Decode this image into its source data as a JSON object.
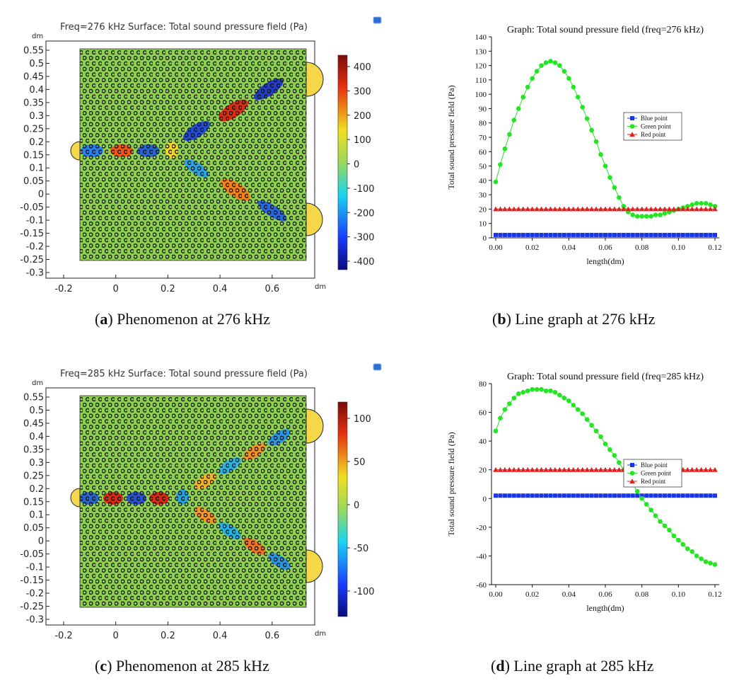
{
  "panels": [
    {
      "id": "a",
      "letter": "a",
      "caption": "Phenomenon at 276 kHz",
      "title": "Freq=276 kHz Surface: Total sound pressure field (Pa)",
      "unit_y": "dm",
      "unit_x": "dm",
      "yticks": [
        "0.55",
        "0.5",
        "0.45",
        "0.4",
        "0.35",
        "0.3",
        "0.25",
        "0.2",
        "0.15",
        "0.1",
        "0.05",
        "0",
        "-0.05",
        "-0.1",
        "-0.15",
        "-0.2",
        "-0.25",
        "-0.3"
      ],
      "xticks": [
        "-0.2",
        "0",
        "0.2",
        "0.4",
        "0.6"
      ],
      "colorbar_ticks": [
        "400",
        "300",
        "200",
        "100",
        "0",
        "-100",
        "-200",
        "-300",
        "-400"
      ]
    },
    {
      "id": "c",
      "letter": "c",
      "caption": "Phenomenon at 285 kHz",
      "title": "Freq=285 kHz Surface: Total sound pressure field (Pa)",
      "unit_y": "dm",
      "unit_x": "dm",
      "yticks": [
        "0.55",
        "0.5",
        "0.45",
        "0.4",
        "0.35",
        "0.3",
        "0.25",
        "0.2",
        "0.15",
        "0.1",
        "0.05",
        "0",
        "-0.05",
        "-0.1",
        "-0.15",
        "-0.2",
        "-0.25",
        "-0.3"
      ],
      "xticks": [
        "-0.2",
        "0",
        "0.2",
        "0.4",
        "0.6"
      ],
      "colorbar_ticks": [
        "100",
        "50",
        "0",
        "-50",
        "-100"
      ]
    }
  ],
  "colors": {
    "field": "#8ed14e",
    "blue_series": "#1a36e8",
    "green_series": "#22e622",
    "red_series": "#e81c1c"
  },
  "chart_data": [
    {
      "panel": "b",
      "letter": "b",
      "caption": "Line graph at 276 kHz",
      "type": "line",
      "title": "Graph: Total sound pressure field (freq=276 kHz)",
      "xlabel": "length(dm)",
      "ylabel": "Total sound pressure field (Pa)",
      "xlim": [
        0,
        0.12
      ],
      "ylim": [
        0,
        140
      ],
      "xticks": [
        "0.00",
        "0.02",
        "0.04",
        "0.06",
        "0.08",
        "0.10",
        "0.12"
      ],
      "yticks": [
        "0",
        "10",
        "20",
        "30",
        "40",
        "50",
        "60",
        "70",
        "80",
        "90",
        "100",
        "110",
        "120",
        "130",
        "140"
      ],
      "legend_position": "right",
      "series": [
        {
          "name": "Blue point",
          "marker": "square",
          "color": "#1a36e8",
          "x": [
            0,
            0.12
          ],
          "y": [
            2,
            2
          ],
          "dense": true
        },
        {
          "name": "Green point",
          "marker": "circle",
          "color": "#22e622",
          "x": [
            0.0,
            0.0025,
            0.005,
            0.0075,
            0.01,
            0.0125,
            0.015,
            0.0175,
            0.02,
            0.0225,
            0.025,
            0.0275,
            0.03,
            0.0325,
            0.035,
            0.0375,
            0.04,
            0.0425,
            0.045,
            0.0475,
            0.05,
            0.0525,
            0.055,
            0.0575,
            0.06,
            0.0625,
            0.065,
            0.0675,
            0.07,
            0.0725,
            0.075,
            0.0775,
            0.08,
            0.0825,
            0.085,
            0.0875,
            0.09,
            0.0925,
            0.095,
            0.0975,
            0.1,
            0.1025,
            0.105,
            0.1075,
            0.11,
            0.1125,
            0.115,
            0.1175,
            0.12
          ],
          "y": [
            39,
            51,
            62,
            72,
            82,
            90,
            98,
            105,
            111,
            116,
            120,
            122,
            123,
            122,
            120,
            116,
            111,
            105,
            98,
            91,
            83,
            75,
            67,
            58,
            50,
            42,
            35,
            28,
            22,
            18,
            16,
            15,
            15,
            15,
            15,
            16,
            16,
            17,
            18,
            19,
            20,
            21,
            22,
            23,
            24,
            24,
            24,
            23,
            22
          ]
        },
        {
          "name": "Red point",
          "marker": "triangle",
          "color": "#e81c1c",
          "x": [
            0,
            0.12
          ],
          "y": [
            20,
            20
          ],
          "dense": true
        }
      ]
    },
    {
      "panel": "d",
      "letter": "d",
      "caption": "Line graph at 285 kHz",
      "type": "line",
      "title": "Graph: Total sound pressure field (freq=285 kHz)",
      "xlabel": "length(dm)",
      "ylabel": "Total sound pressure field (Pa)",
      "xlim": [
        0,
        0.12
      ],
      "ylim": [
        -60,
        80
      ],
      "xticks": [
        "0.00",
        "0.02",
        "0.04",
        "0.06",
        "0.08",
        "0.10",
        "0.12"
      ],
      "yticks": [
        "-60",
        "-40",
        "-20",
        "0",
        "20",
        "40",
        "60",
        "80"
      ],
      "legend_position": "right",
      "series": [
        {
          "name": "Blue point",
          "marker": "square",
          "color": "#1a36e8",
          "x": [
            0,
            0.12
          ],
          "y": [
            2,
            2
          ],
          "dense": true
        },
        {
          "name": "Green point",
          "marker": "circle",
          "color": "#22e622",
          "x": [
            0.0,
            0.0025,
            0.005,
            0.0075,
            0.01,
            0.0125,
            0.015,
            0.0175,
            0.02,
            0.0225,
            0.025,
            0.0275,
            0.03,
            0.0325,
            0.035,
            0.0375,
            0.04,
            0.0425,
            0.045,
            0.0475,
            0.05,
            0.0525,
            0.055,
            0.0575,
            0.06,
            0.0625,
            0.065,
            0.0675,
            0.07,
            0.0725,
            0.075,
            0.0775,
            0.08,
            0.0825,
            0.085,
            0.0875,
            0.09,
            0.0925,
            0.095,
            0.0975,
            0.1,
            0.1025,
            0.105,
            0.1075,
            0.11,
            0.1125,
            0.115,
            0.1175,
            0.12
          ],
          "y": [
            47,
            56,
            62,
            66,
            70,
            73,
            74,
            75,
            76,
            76,
            76,
            75,
            75,
            74,
            72,
            70,
            68,
            65,
            62,
            59,
            55,
            51,
            47,
            43,
            38,
            34,
            30,
            25,
            20,
            15,
            10,
            5,
            0,
            -4,
            -8,
            -12,
            -16,
            -19,
            -22,
            -26,
            -29,
            -32,
            -35,
            -37,
            -40,
            -42,
            -44,
            -45,
            -46
          ]
        },
        {
          "name": "Red point",
          "marker": "triangle",
          "color": "#e81c1c",
          "x": [
            0,
            0.12
          ],
          "y": [
            20,
            20
          ],
          "dense": true
        }
      ]
    }
  ]
}
